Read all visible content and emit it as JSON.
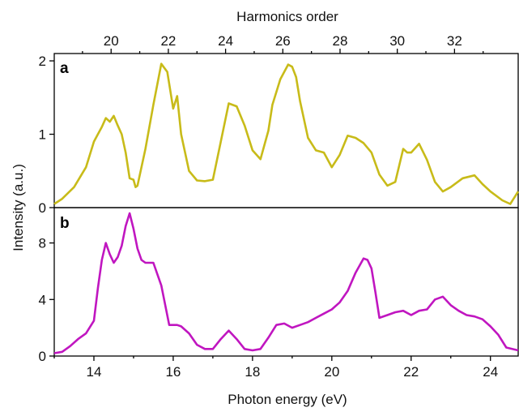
{
  "chart_data": [
    {
      "panel": "a",
      "type": "line",
      "top_axis_title": "Harmonics order",
      "top_ticks": [
        "20",
        "22",
        "24",
        "26",
        "28",
        "30",
        "32"
      ],
      "ylim": [
        0,
        2.1
      ],
      "yticks": [
        "0",
        "1",
        "2"
      ],
      "xlim": [
        13,
        24.7
      ],
      "series": [
        {
          "color": "#c8bb19",
          "x": [
            13.0,
            13.2,
            13.5,
            13.8,
            14.0,
            14.1,
            14.2,
            14.3,
            14.4,
            14.5,
            14.6,
            14.7,
            14.8,
            14.9,
            15.0,
            15.05,
            15.1,
            15.3,
            15.5,
            15.7,
            15.85,
            16.0,
            16.1,
            16.2,
            16.4,
            16.6,
            16.8,
            17.0,
            17.2,
            17.4,
            17.6,
            17.8,
            18.0,
            18.2,
            18.4,
            18.5,
            18.7,
            18.9,
            19.0,
            19.1,
            19.2,
            19.4,
            19.6,
            19.8,
            20.0,
            20.2,
            20.4,
            20.6,
            20.8,
            21.0,
            21.2,
            21.4,
            21.6,
            21.8,
            21.9,
            22.0,
            22.2,
            22.4,
            22.6,
            22.8,
            23.0,
            23.3,
            23.6,
            23.8,
            24.0,
            24.3,
            24.5,
            24.7
          ],
          "y": [
            0.05,
            0.12,
            0.28,
            0.55,
            0.9,
            1.0,
            1.1,
            1.22,
            1.17,
            1.25,
            1.12,
            1.0,
            0.75,
            0.4,
            0.38,
            0.28,
            0.3,
            0.8,
            1.4,
            1.96,
            1.85,
            1.35,
            1.52,
            1.0,
            0.5,
            0.37,
            0.36,
            0.38,
            0.9,
            1.42,
            1.38,
            1.12,
            0.78,
            0.66,
            1.05,
            1.4,
            1.75,
            1.95,
            1.92,
            1.78,
            1.45,
            0.95,
            0.78,
            0.75,
            0.55,
            0.72,
            0.98,
            0.95,
            0.88,
            0.75,
            0.45,
            0.3,
            0.35,
            0.8,
            0.75,
            0.75,
            0.87,
            0.65,
            0.35,
            0.22,
            0.28,
            0.4,
            0.44,
            0.32,
            0.22,
            0.1,
            0.05,
            0.22
          ]
        }
      ]
    },
    {
      "panel": "b",
      "type": "line",
      "ylim": [
        0,
        10.5
      ],
      "yticks": [
        "0",
        "4",
        "8"
      ],
      "xlim": [
        13,
        24.7
      ],
      "xticks": [
        "14",
        "16",
        "18",
        "20",
        "22",
        "24"
      ],
      "xlabel": "Photon energy (eV)",
      "series": [
        {
          "color": "#c016c0",
          "x": [
            13.0,
            13.2,
            13.4,
            13.6,
            13.8,
            14.0,
            14.1,
            14.2,
            14.3,
            14.4,
            14.5,
            14.6,
            14.7,
            14.8,
            14.9,
            15.0,
            15.1,
            15.2,
            15.3,
            15.5,
            15.7,
            15.9,
            16.0,
            16.1,
            16.2,
            16.4,
            16.6,
            16.8,
            17.0,
            17.2,
            17.4,
            17.6,
            17.8,
            18.0,
            18.2,
            18.4,
            18.6,
            18.8,
            19.0,
            19.2,
            19.4,
            19.6,
            19.8,
            20.0,
            20.2,
            20.4,
            20.6,
            20.8,
            20.9,
            21.0,
            21.1,
            21.2,
            21.4,
            21.6,
            21.8,
            22.0,
            22.2,
            22.4,
            22.6,
            22.8,
            23.0,
            23.2,
            23.4,
            23.6,
            23.8,
            24.0,
            24.2,
            24.4,
            24.7
          ],
          "y": [
            0.2,
            0.3,
            0.7,
            1.2,
            1.6,
            2.5,
            4.8,
            6.8,
            8.0,
            7.2,
            6.6,
            7.0,
            7.8,
            9.2,
            10.1,
            9.0,
            7.6,
            6.8,
            6.6,
            6.6,
            5.0,
            2.2,
            2.2,
            2.2,
            2.1,
            1.6,
            0.8,
            0.5,
            0.5,
            1.2,
            1.8,
            1.2,
            0.5,
            0.4,
            0.5,
            1.3,
            2.2,
            2.3,
            2.0,
            2.2,
            2.4,
            2.7,
            3.0,
            3.3,
            3.8,
            4.6,
            5.9,
            6.9,
            6.8,
            6.2,
            4.5,
            2.7,
            2.9,
            3.1,
            3.2,
            2.9,
            3.2,
            3.3,
            4.0,
            4.2,
            3.6,
            3.2,
            2.9,
            2.8,
            2.6,
            2.1,
            1.5,
            0.6,
            0.4
          ]
        }
      ]
    }
  ],
  "shared_ylabel": "Intensity (a.u.)"
}
